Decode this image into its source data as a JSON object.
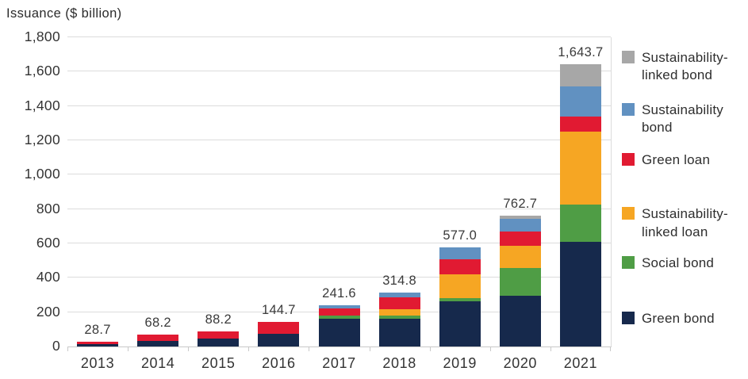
{
  "chart_data": {
    "type": "bar",
    "stacked": true,
    "title": "Issuance ($ billion)",
    "xlabel": "",
    "ylabel": "Issuance ($ billion)",
    "ylim": [
      0,
      1800
    ],
    "grid": true,
    "legend_position": "right",
    "categories": [
      "2013",
      "2014",
      "2015",
      "2016",
      "2017",
      "2018",
      "2019",
      "2020",
      "2021"
    ],
    "yticks": [
      0,
      200,
      400,
      600,
      800,
      1000,
      1200,
      1400,
      1600,
      1800
    ],
    "ytick_labels": [
      "0",
      "200",
      "400",
      "600",
      "800",
      "1,000",
      "1,200",
      "1,400",
      "1,600",
      "1,800"
    ],
    "totals": [
      28.7,
      68.2,
      88.2,
      144.7,
      241.6,
      314.8,
      577.0,
      762.7,
      1643.7
    ],
    "total_labels": [
      "28.7",
      "68.2",
      "88.2",
      "144.7",
      "241.6",
      "314.8",
      "577.0",
      "762.7",
      "1,643.7"
    ],
    "series_note": "series listed bottom-to-top of stack; values estimated from gridlines except totals which are labeled",
    "series": [
      {
        "name": "Green bond",
        "color": "#16294c",
        "values": [
          16.0,
          32.0,
          48.0,
          75.0,
          160.0,
          163.0,
          263.0,
          297.0,
          609.0
        ]
      },
      {
        "name": "Social bond",
        "color": "#4f9d45",
        "values": [
          0,
          0,
          0,
          0,
          18.0,
          16.0,
          18.0,
          160.0,
          216.0
        ]
      },
      {
        "name": "Sustainability-linked loan",
        "color": "#f6a623",
        "values": [
          0,
          0,
          0,
          0,
          0,
          36.0,
          137.0,
          128.0,
          427.0
        ]
      },
      {
        "name": "Green loan",
        "color": "#e11a32",
        "values": [
          12.7,
          36.2,
          40.2,
          69.7,
          43.0,
          70.0,
          92.0,
          83.0,
          88.0
        ]
      },
      {
        "name": "Sustainability bond",
        "color": "#6191c1",
        "values": [
          0,
          0,
          0,
          0,
          20.6,
          29.8,
          67.0,
          77.0,
          176.0
        ]
      },
      {
        "name": "Sustainability-linked bond",
        "color": "#a7a7a7",
        "values": [
          0,
          0,
          0,
          0,
          0,
          0,
          0,
          17.7,
          127.7
        ]
      }
    ],
    "legend": [
      {
        "label": "Sustainability-linked bond",
        "color": "#a7a7a7"
      },
      {
        "label": "Sustainability bond",
        "color": "#6191c1"
      },
      {
        "label": "Green loan",
        "color": "#e11a32"
      },
      {
        "label": "Sustainability-linked loan",
        "color": "#f6a623"
      },
      {
        "label": "Social bond",
        "color": "#4f9d45"
      },
      {
        "label": "Green bond",
        "color": "#16294c"
      }
    ]
  }
}
